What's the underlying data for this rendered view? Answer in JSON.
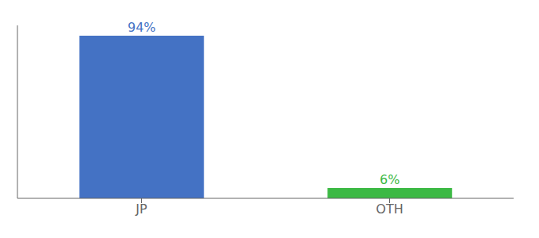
{
  "chart_data": {
    "type": "bar",
    "categories": [
      "JP",
      "OTH"
    ],
    "values": [
      94,
      6
    ],
    "value_labels": [
      "94%",
      "6%"
    ],
    "colors": [
      "#4472c4",
      "#3cb944"
    ],
    "ylim": [
      0,
      100
    ],
    "data_labels": true,
    "tick_labels": "x",
    "grid": false
  }
}
